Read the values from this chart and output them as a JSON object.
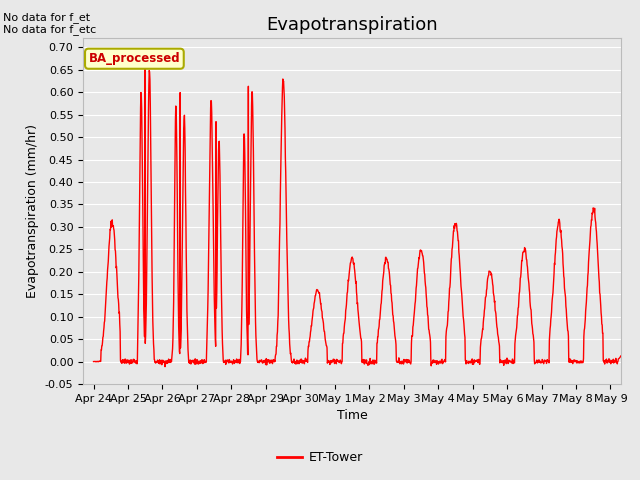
{
  "title": "Evapotranspiration",
  "xlabel": "Time",
  "ylabel": "Evapotranspiration (mm/hr)",
  "ylim": [
    -0.05,
    0.72
  ],
  "yticks": [
    -0.05,
    0.0,
    0.05,
    0.1,
    0.15,
    0.2,
    0.25,
    0.3,
    0.35,
    0.4,
    0.45,
    0.5,
    0.55,
    0.6,
    0.65,
    0.7
  ],
  "line_color": "#ff0000",
  "line_width": 1.0,
  "background_color": "#e8e8e8",
  "plot_bg_color": "#e8e8e8",
  "grid_color": "#ffffff",
  "annotation_top_left": "No data for f_et\nNo data for f_etc",
  "legend_label": "ET-Tower",
  "legend_box_facecolor": "#ffffcc",
  "legend_box_edgecolor": "#aaaa00",
  "legend_text_color": "#cc0000",
  "title_fontsize": 13,
  "axis_label_fontsize": 9,
  "tick_label_fontsize": 8,
  "n_days": 16,
  "x_tick_labels": [
    "Apr 24",
    "Apr 25",
    "Apr 26",
    "Apr 27",
    "Apr 28",
    "Apr 29",
    "Apr 30",
    "May 1",
    "May 2",
    "May 3",
    "May 4",
    "May 5",
    "May 6",
    "May 7",
    "May 8",
    "May 9"
  ],
  "daily_peaks": [
    0.59,
    0.65,
    0.6,
    0.58,
    0.6,
    0.63,
    0.16,
    0.23,
    0.23,
    0.25,
    0.31,
    0.2,
    0.25,
    0.31,
    0.34,
    0.03
  ]
}
